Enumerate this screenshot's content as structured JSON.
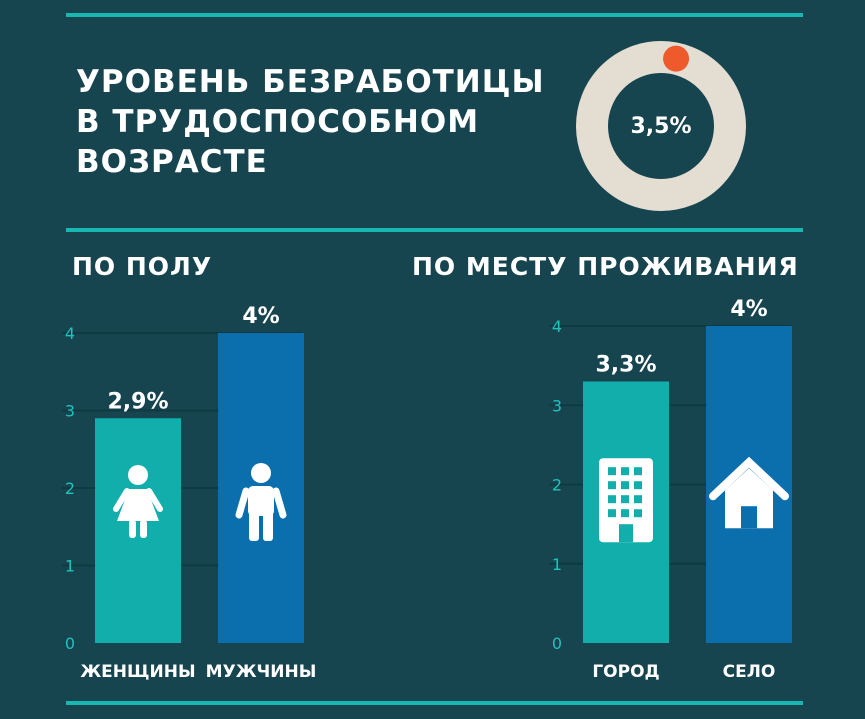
{
  "header": {
    "title_lines": [
      "УРОВЕНЬ БЕЗРАБОТИЦЫ",
      "В ТРУДОСПОСОБНОМ",
      "ВОЗРАСТЕ"
    ]
  },
  "colors": {
    "background": "#16444f",
    "accent_line": "#19b7b2",
    "teal_bar": "#12aeac",
    "blue_bar": "#0b6fae",
    "donut_track": "#e4ddd1",
    "donut_marker": "#ee5a2c",
    "gridline": "#0f3a42",
    "axis_text": "#1fc2bd"
  },
  "chart_data": [
    {
      "type": "pie",
      "value_label": "3,5%",
      "values": [
        3.5,
        96.5
      ],
      "marker_color": "#ee5a2c"
    },
    {
      "type": "bar",
      "title": "ПО ПОЛУ",
      "categories": [
        "ЖЕНЩИНЫ",
        "МУЖЧИНЫ"
      ],
      "values": [
        2.9,
        4.0
      ],
      "value_labels": [
        "2,9%",
        "4%"
      ],
      "colors": [
        "#12aeac",
        "#0b6fae"
      ],
      "icons": [
        "woman-icon",
        "man-icon"
      ],
      "yticks": [
        0,
        1,
        2,
        3,
        4
      ],
      "ylim": [
        0,
        4
      ],
      "grid": true
    },
    {
      "type": "bar",
      "title": "ПО МЕСТУ ПРОЖИВАНИЯ",
      "categories": [
        "ГОРОД",
        "СЕЛО"
      ],
      "values": [
        3.3,
        4.0
      ],
      "value_labels": [
        "3,3%",
        "4%"
      ],
      "colors": [
        "#12aeac",
        "#0b6fae"
      ],
      "icons": [
        "building-icon",
        "house-icon"
      ],
      "yticks": [
        0,
        1,
        2,
        3,
        4
      ],
      "ylim": [
        0,
        4
      ],
      "grid": true
    }
  ]
}
